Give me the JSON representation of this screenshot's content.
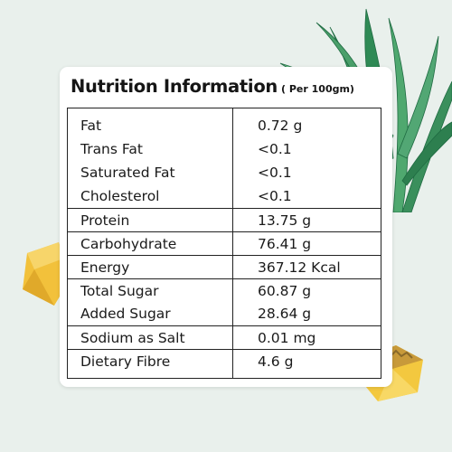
{
  "title": "Nutrition Information",
  "subtitle": "( Per 100gm)",
  "rows": [
    {
      "name": "Fat",
      "value": "0.72 g"
    },
    {
      "name": "Trans Fat",
      "value": "<0.1"
    },
    {
      "name": "Saturated Fat",
      "value": "<0.1"
    },
    {
      "name": "Cholesterol",
      "value": "<0.1"
    },
    {
      "name": "Protein",
      "value": "13.75 g"
    },
    {
      "name": "Carbohydrate",
      "value": "76.41 g"
    },
    {
      "name": "Energy",
      "value": "367.12 Kcal"
    },
    {
      "name": "Total Sugar",
      "value": "60.87 g"
    },
    {
      "name": "Added Sugar",
      "value": "28.64 g"
    },
    {
      "name": "Sodium as Salt",
      "value": "0.01 mg"
    },
    {
      "name": "Dietary Fibre",
      "value": "4.6 g"
    }
  ],
  "colors": {
    "background": "#e9f0ec",
    "card": "#ffffff",
    "text": "#1a1a1a",
    "leaf": "#2f8a5a",
    "pineapple": "#f3c23a"
  }
}
